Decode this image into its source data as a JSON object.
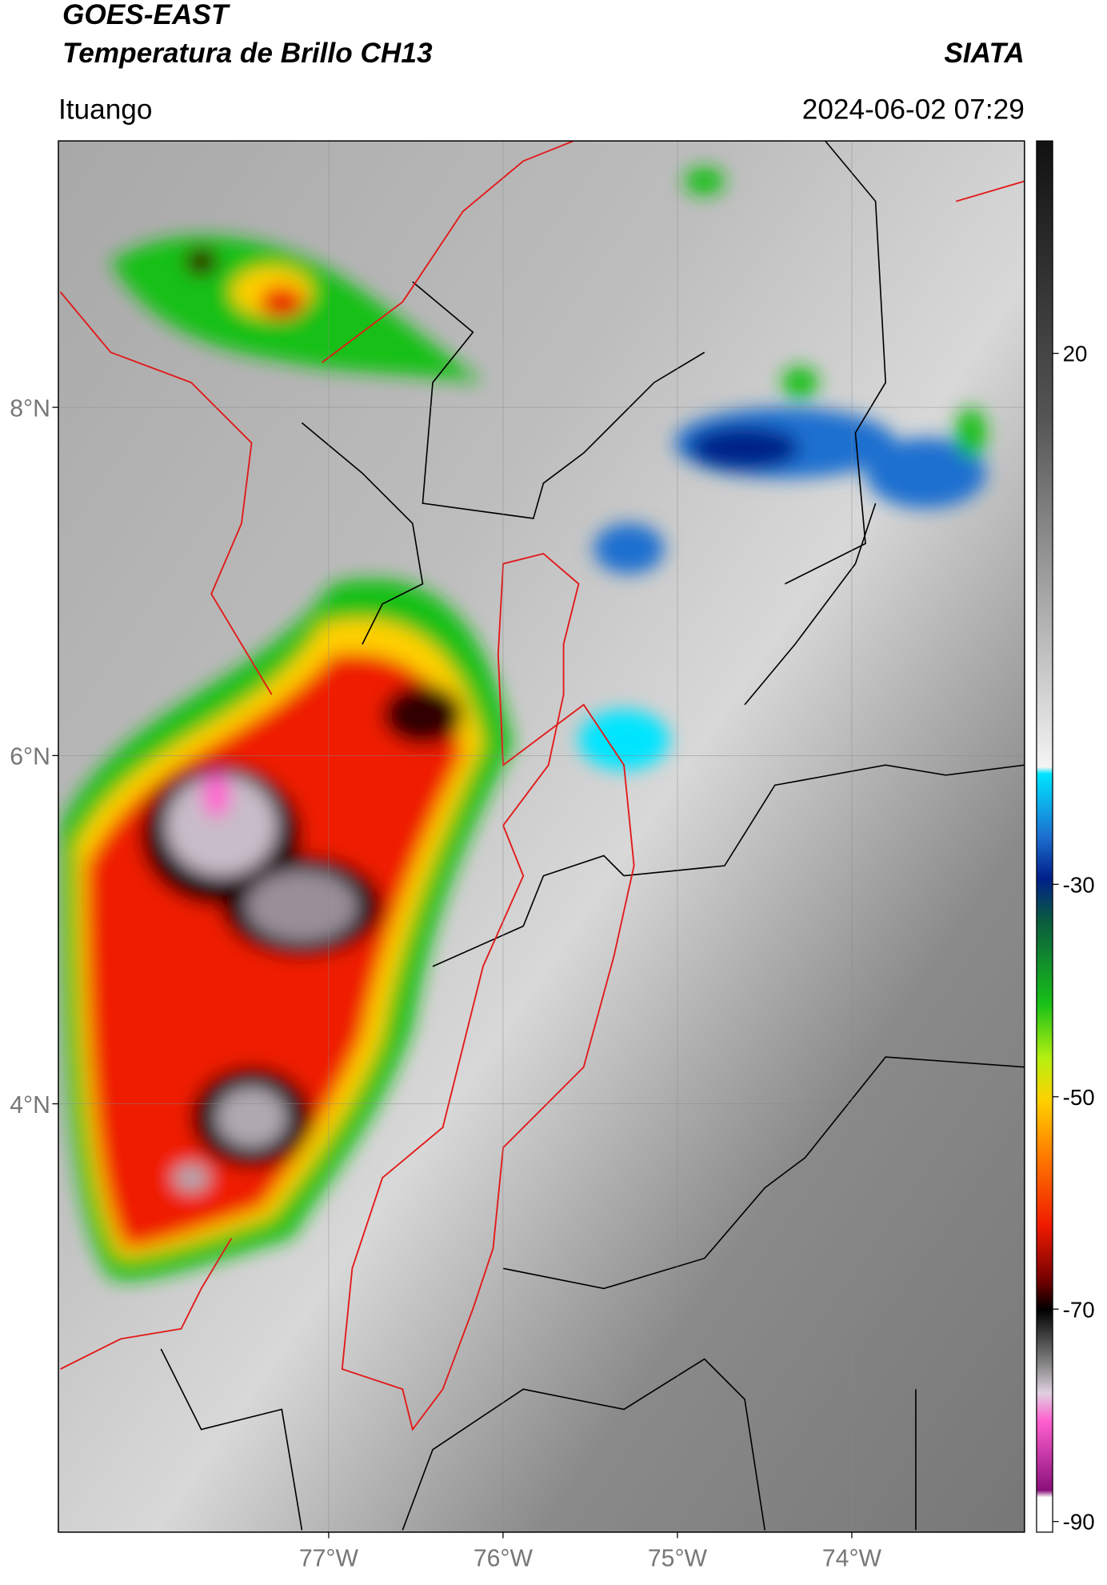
{
  "header": {
    "title_line1": "GOES-EAST",
    "title_line2": "Temperatura de Brillo CH13",
    "source": "SIATA",
    "location": "Ituango",
    "datetime": "2024-06-02 07:29"
  },
  "map": {
    "xlim": [
      -78.55,
      -73.01
    ],
    "ylim": [
      1.54,
      9.53
    ],
    "xticks": [
      {
        "value": -77,
        "label": "77°W"
      },
      {
        "value": -76,
        "label": "76°W"
      },
      {
        "value": -75,
        "label": "75°W"
      },
      {
        "value": -74,
        "label": "74°W"
      }
    ],
    "yticks": [
      {
        "value": 8,
        "label": "8°N"
      },
      {
        "value": 6,
        "label": "6°N"
      },
      {
        "value": 4,
        "label": "4°N"
      }
    ],
    "grid": true
  },
  "colorbar": {
    "lim": [
      -91,
      40
    ],
    "ticks": [
      20,
      -30,
      -50,
      -70,
      -90
    ]
  }
}
